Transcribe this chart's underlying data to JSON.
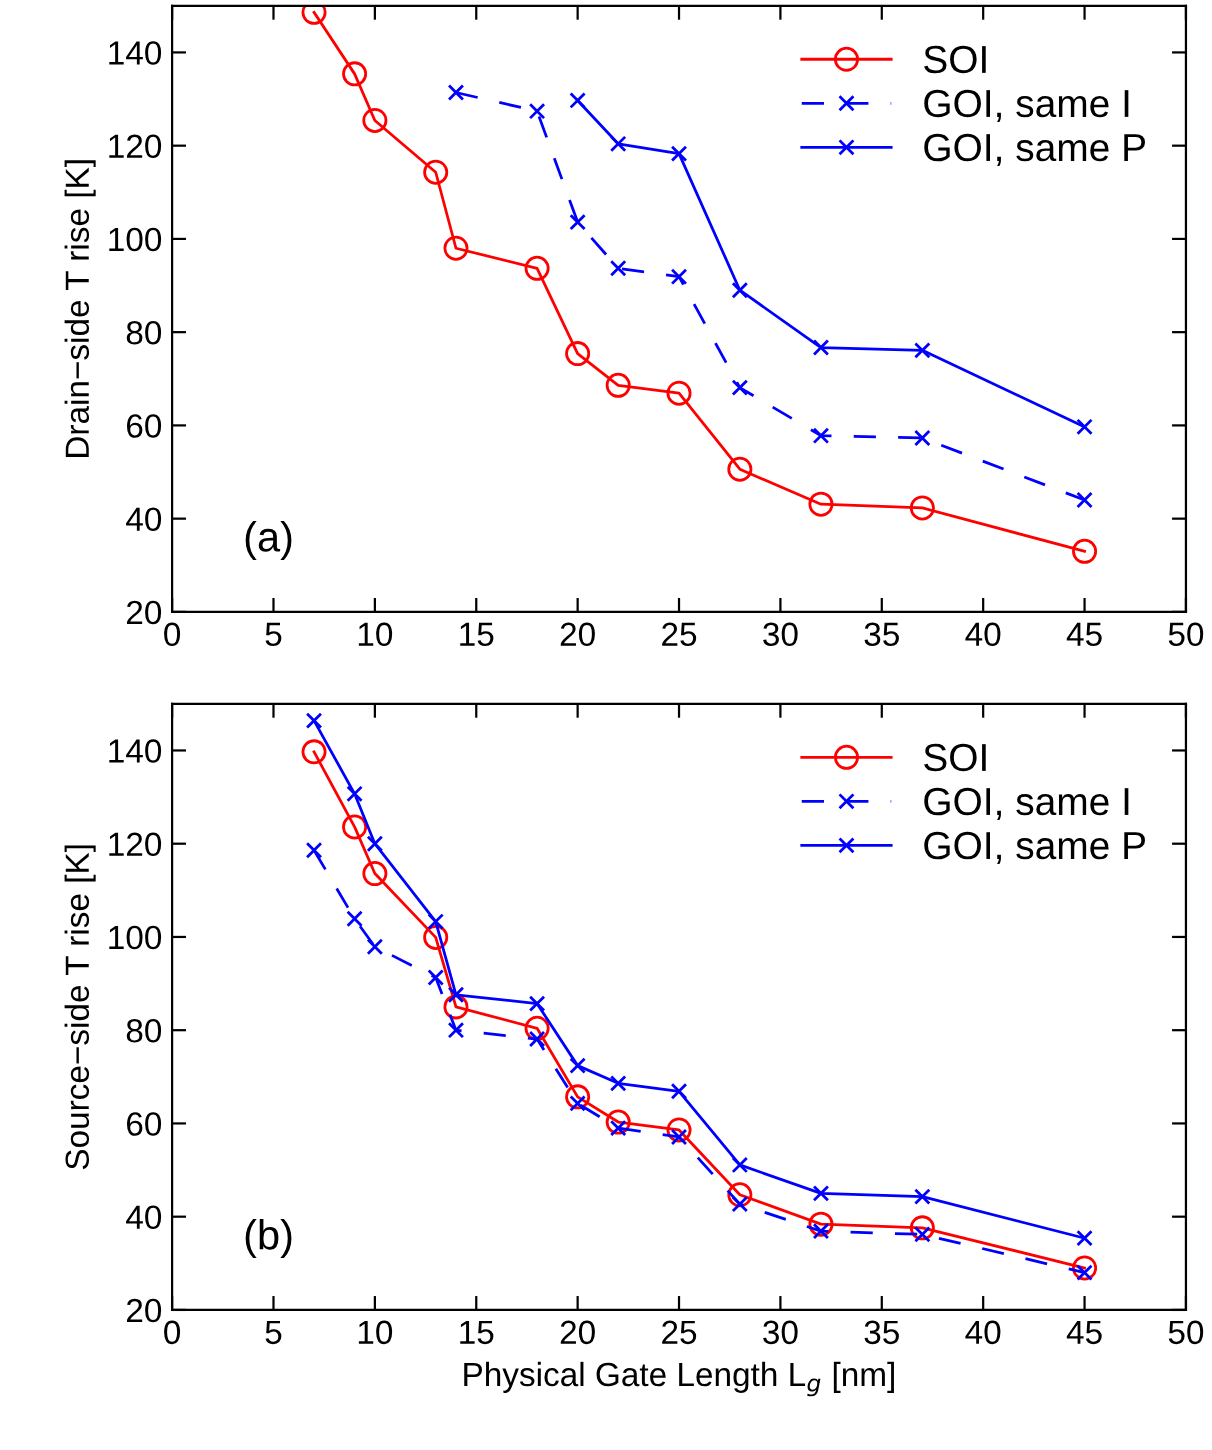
{
  "chart_data": [
    {
      "type": "line",
      "ylabel": "Drain−side T rise [K]",
      "annotations": [
        "(a)"
      ],
      "xlim": [
        0,
        50
      ],
      "ylim": [
        20,
        150
      ],
      "xticks": [
        0,
        5,
        10,
        15,
        20,
        25,
        30,
        35,
        40,
        45,
        50
      ],
      "yticks": [
        20,
        40,
        60,
        80,
        100,
        120,
        140
      ],
      "grid": false,
      "legend": "top right",
      "series": [
        {
          "name": "SOI",
          "color": "#ff0000",
          "marker": "circle",
          "line_style": "solid",
          "x": [
            7,
            9,
            10,
            13,
            14,
            18,
            20,
            22,
            25,
            28,
            32,
            37,
            45
          ],
          "values": [
            148.6,
            135.4,
            125.4,
            114.3,
            98,
            93.7,
            75.4,
            68.6,
            66.9,
            50.6,
            43.1,
            42.3,
            33
          ]
        },
        {
          "name": "GOI, same I",
          "color": "#0000ff",
          "marker": "cross",
          "line_style": "dashed",
          "x": [
            14,
            18,
            20,
            22,
            25,
            28,
            32,
            37,
            45
          ],
          "values": [
            131.4,
            127.4,
            103.6,
            93.7,
            91.9,
            68.1,
            57.8,
            57.3,
            44
          ]
        },
        {
          "name": "GOI, same P",
          "color": "#0000ff",
          "marker": "cross",
          "line_style": "solid",
          "x": [
            20,
            22,
            25,
            28,
            32,
            37,
            45
          ],
          "values": [
            129.7,
            120.4,
            118.3,
            89,
            76.7,
            76.1,
            59.7
          ]
        }
      ]
    },
    {
      "type": "line",
      "xlabel": "Physical Gate Length L$_{g}$ [nm]",
      "ylabel": "Source−side T rise [K]",
      "annotations": [
        "(b)"
      ],
      "xlim": [
        0,
        50
      ],
      "ylim": [
        20,
        150
      ],
      "xticks": [
        0,
        5,
        10,
        15,
        20,
        25,
        30,
        35,
        40,
        45,
        50
      ],
      "yticks": [
        20,
        40,
        60,
        80,
        100,
        120,
        140
      ],
      "grid": false,
      "legend": "top right",
      "series": [
        {
          "name": "SOI",
          "color": "#ff0000",
          "marker": "circle",
          "line_style": "solid",
          "x": [
            7,
            9,
            10,
            13,
            14,
            18,
            20,
            22,
            25,
            28,
            32,
            37,
            45
          ],
          "values": [
            139.7,
            123.6,
            113.6,
            99.9,
            85,
            80.4,
            65.7,
            60.3,
            58.6,
            44.7,
            38.4,
            37.6,
            29
          ]
        },
        {
          "name": "GOI, same I",
          "color": "#0000ff",
          "marker": "cross",
          "line_style": "dashed",
          "x": [
            7,
            9,
            10,
            13,
            14,
            18,
            20,
            22,
            25,
            28,
            32,
            37,
            45
          ],
          "values": [
            118.6,
            103.9,
            97.9,
            91.3,
            80,
            78.1,
            64.3,
            59,
            57.1,
            42.7,
            36.9,
            36.2,
            28
          ]
        },
        {
          "name": "GOI, same P",
          "color": "#0000ff",
          "marker": "cross",
          "line_style": "solid",
          "x": [
            7,
            9,
            10,
            13,
            14,
            18,
            20,
            22,
            25,
            28,
            32,
            37,
            45
          ],
          "values": [
            146.4,
            130.7,
            120,
            103.3,
            87.6,
            85.7,
            72.4,
            68.6,
            66.9,
            51.1,
            45,
            44.3,
            35.4
          ]
        }
      ]
    }
  ]
}
